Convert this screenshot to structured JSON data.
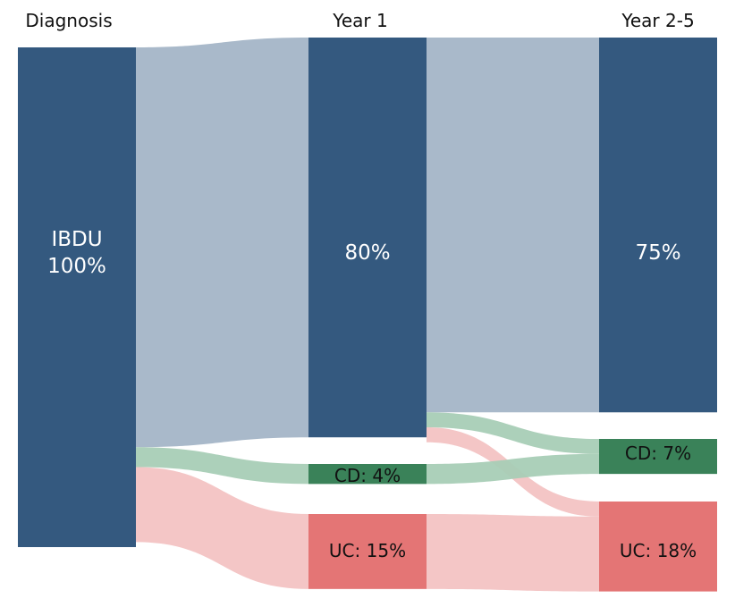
{
  "chart_data": {
    "type": "sankey",
    "columns": [
      "Diagnosis",
      "Year 1",
      "Year 2-5"
    ],
    "nodes": [
      {
        "id": "ibdu0",
        "column": 0,
        "label_lines": [
          "IBDU",
          "100%"
        ],
        "value": 100,
        "color": "#34597f"
      },
      {
        "id": "ibdu1",
        "column": 1,
        "label_lines": [
          "80%"
        ],
        "value": 80,
        "color": "#34597f"
      },
      {
        "id": "cd1",
        "column": 1,
        "label_lines": [
          "CD: 4%"
        ],
        "value": 4,
        "color": "#3a8259"
      },
      {
        "id": "uc1",
        "column": 1,
        "label_lines": [
          "UC: 15%"
        ],
        "value": 15,
        "color": "#e47575"
      },
      {
        "id": "ibdu2",
        "column": 2,
        "label_lines": [
          "75%"
        ],
        "value": 75,
        "color": "#34597f"
      },
      {
        "id": "cd2",
        "column": 2,
        "label_lines": [
          "CD: 7%"
        ],
        "value": 7,
        "color": "#3a8259"
      },
      {
        "id": "uc2",
        "column": 2,
        "label_lines": [
          "UC: 18%"
        ],
        "value": 18,
        "color": "#e47575"
      }
    ],
    "links": [
      {
        "source": "ibdu0",
        "target": "ibdu1",
        "value": 80,
        "color": "#a4b5c7"
      },
      {
        "source": "ibdu0",
        "target": "cd1",
        "value": 4,
        "color": "#a8cdb6"
      },
      {
        "source": "ibdu0",
        "target": "uc1",
        "value": 15,
        "color": "#f3c3c3"
      },
      {
        "source": "ibdu1",
        "target": "ibdu2",
        "value": 75,
        "color": "#a4b5c7"
      },
      {
        "source": "ibdu1",
        "target": "cd2",
        "value": 3,
        "color": "#a8cdb6"
      },
      {
        "source": "ibdu1",
        "target": "uc2",
        "value": 3,
        "color": "#f3c3c3"
      },
      {
        "source": "cd1",
        "target": "cd2",
        "value": 4,
        "color": "#a8cdb6"
      },
      {
        "source": "uc1",
        "target": "uc2",
        "value": 15,
        "color": "#f3c3c3"
      }
    ]
  }
}
